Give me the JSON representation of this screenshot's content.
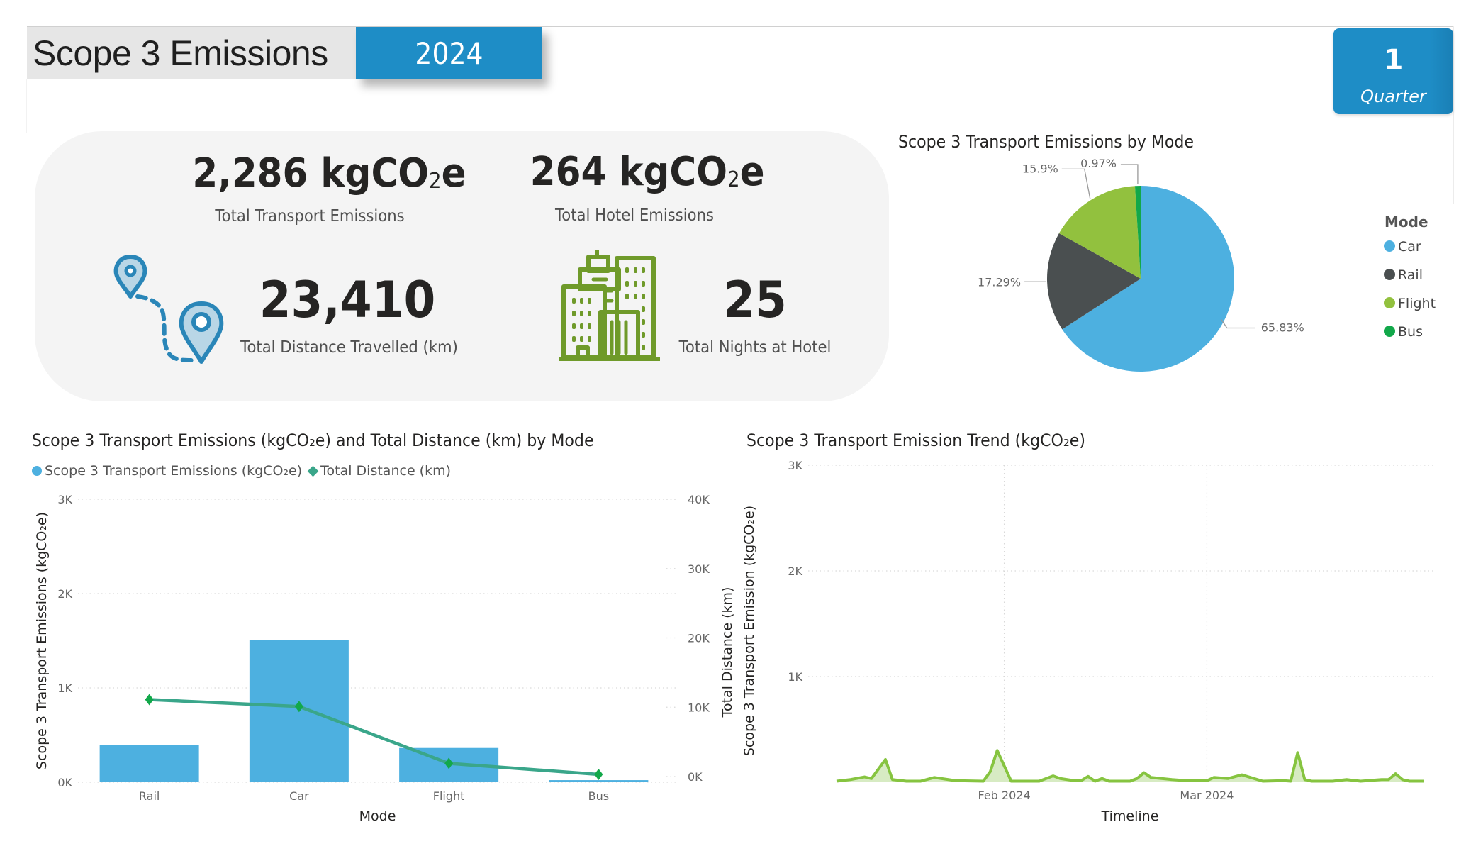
{
  "header": {
    "title": "Scope 3 Emissions",
    "year": "2024"
  },
  "quarter_card": {
    "value": "1",
    "label": "Quarter"
  },
  "kpis": {
    "transport_emissions": {
      "value": "2,286 kgCO",
      "sub": "2",
      "suffix": "e",
      "label": "Total Transport Emissions"
    },
    "hotel_emissions": {
      "value": "264 kgCO",
      "sub": "2",
      "suffix": "e",
      "label": "Total Hotel Emissions"
    },
    "distance": {
      "value": "23,410",
      "label": "Total Distance Travelled (km)",
      "icon": "map-route-pins-icon"
    },
    "nights": {
      "value": "25",
      "label": "Total Nights at Hotel",
      "icon": "hotel-buildings-icon"
    }
  },
  "colors": {
    "accent_blue": "#1e8dc6",
    "car": "#4db0e0",
    "rail": "#4a4f50",
    "flight": "#92c13e",
    "bus": "#12a84a",
    "distance_line": "#3aa68a",
    "distance_marker": "#12a84a",
    "trend_line": "#86c440",
    "trend_fill": "#d3e9bd",
    "pin_icon": "#2a86b8",
    "building_icon": "#6f9a2a"
  },
  "chart_data": [
    {
      "type": "pie",
      "title": "Scope 3 Transport Emissions by Mode",
      "legend_title": "Mode",
      "legend_position": "right",
      "categories": [
        "Car",
        "Rail",
        "Flight",
        "Bus"
      ],
      "values": [
        65.83,
        17.29,
        15.9,
        0.97
      ],
      "labels": [
        "65.83%",
        "17.29%",
        "15.9%",
        "0.97%"
      ]
    },
    {
      "type": "bar",
      "title": "Scope 3 Transport Emissions (kgCO₂e) and Total Distance (km) by Mode",
      "categories": [
        "Rail",
        "Car",
        "Flight",
        "Bus"
      ],
      "series": [
        {
          "name": "Scope 3 Transport Emissions (kgCO₂e)",
          "kind": "bar",
          "axis": "left",
          "values": [
            395,
            1505,
            363,
            22
          ]
        },
        {
          "name": "Total Distance (km)",
          "kind": "line",
          "axis": "right",
          "values": [
            11100,
            10100,
            1900,
            310
          ]
        }
      ],
      "xlabel": "Mode",
      "ylabel": "Scope 3 Transport Emissions (kgCO₂e)",
      "y2label": "Total Distance (km)",
      "ylim": [
        0,
        3000
      ],
      "y2lim": [
        0,
        40000
      ],
      "yticks": [
        "0K",
        "1K",
        "2K",
        "3K"
      ],
      "y2ticks": [
        "0K",
        "10K",
        "20K",
        "30K",
        "40K"
      ],
      "legend_position": "top-left",
      "grid": true
    },
    {
      "type": "area",
      "title": "Scope 3 Transport Emission Trend (kgCO₂e)",
      "xlabel": "Timeline",
      "ylabel": "Scope 3 Transport Emission (kgCO₂e)",
      "ylim": [
        0,
        3000
      ],
      "yticks": [
        "1K",
        "2K",
        "3K"
      ],
      "xticks": [
        {
          "label": "Feb 2024",
          "date": "2024-02-01"
        },
        {
          "label": "Mar 2024",
          "date": "2024-03-01"
        }
      ],
      "xrange": [
        "2024-01-08",
        "2024-04-01"
      ],
      "grid": true,
      "x": [
        "2024-01-08",
        "2024-01-10",
        "2024-01-12",
        "2024-01-13",
        "2024-01-15",
        "2024-01-16",
        "2024-01-18",
        "2024-01-20",
        "2024-01-22",
        "2024-01-24",
        "2024-01-25",
        "2024-01-29",
        "2024-01-30",
        "2024-01-31",
        "2024-02-02",
        "2024-02-04",
        "2024-02-06",
        "2024-02-08",
        "2024-02-09",
        "2024-02-11",
        "2024-02-12",
        "2024-02-13",
        "2024-02-14",
        "2024-02-15",
        "2024-02-16",
        "2024-02-19",
        "2024-02-20",
        "2024-02-21",
        "2024-02-22",
        "2024-02-25",
        "2024-02-27",
        "2024-03-01",
        "2024-03-02",
        "2024-03-04",
        "2024-03-06",
        "2024-03-09",
        "2024-03-12",
        "2024-03-13",
        "2024-03-14",
        "2024-03-15",
        "2024-03-16",
        "2024-03-19",
        "2024-03-21",
        "2024-03-23",
        "2024-03-26",
        "2024-03-27",
        "2024-03-28",
        "2024-03-29",
        "2024-03-30",
        "2024-04-01"
      ],
      "values": [
        10,
        25,
        50,
        35,
        215,
        25,
        10,
        10,
        45,
        25,
        15,
        10,
        100,
        300,
        10,
        10,
        10,
        60,
        35,
        15,
        15,
        55,
        10,
        35,
        10,
        10,
        35,
        90,
        45,
        25,
        15,
        15,
        45,
        35,
        70,
        10,
        15,
        10,
        280,
        25,
        10,
        10,
        25,
        10,
        25,
        25,
        80,
        25,
        10,
        10
      ]
    }
  ]
}
